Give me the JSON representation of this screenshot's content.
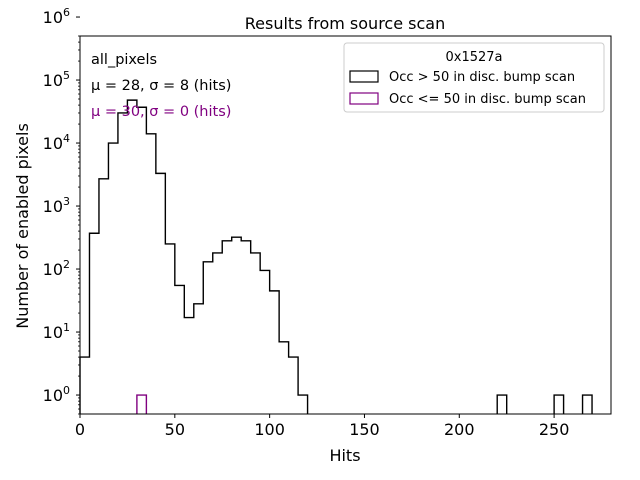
{
  "chart_data": {
    "type": "histogram",
    "title": "Results from source scan",
    "xlabel": "Hits",
    "ylabel": "Number of enabled pixels",
    "xlim": [
      0,
      280
    ],
    "ylim": [
      0.5,
      500000
    ],
    "yscale": "log",
    "grid": false,
    "bin_width": 5,
    "x_ticks": [
      0,
      50,
      100,
      150,
      200,
      250
    ],
    "x_tick_labels": [
      "0",
      "50",
      "100",
      "150",
      "200",
      "250"
    ],
    "y_ticks": [
      1,
      10,
      100,
      1000,
      10000,
      100000,
      1000000
    ],
    "y_tick_labels": [
      {
        "base": "10",
        "exp": "0"
      },
      {
        "base": "10",
        "exp": "1"
      },
      {
        "base": "10",
        "exp": "2"
      },
      {
        "base": "10",
        "exp": "3"
      },
      {
        "base": "10",
        "exp": "4"
      },
      {
        "base": "10",
        "exp": "5"
      },
      {
        "base": "10",
        "exp": "6"
      }
    ],
    "annotations": [
      {
        "text": "all_pixels",
        "color": "#000000"
      },
      {
        "text": "μ = 28, σ = 8 (hits)",
        "color": "#000000"
      },
      {
        "text": "μ = 30, σ = 0 (hits)",
        "color": "#800080"
      }
    ],
    "legend": {
      "title": "0x1527a",
      "position": "top-right",
      "entries": [
        {
          "label": "Occ > 50 in disc. bump scan",
          "color": "#000000"
        },
        {
          "label": "Occ <= 50 in disc. bump scan",
          "color": "#800080"
        }
      ]
    },
    "series": [
      {
        "name": "Occ > 50 in disc. bump scan",
        "color": "#000000",
        "bins": [
          {
            "x": 0,
            "y": 4
          },
          {
            "x": 5,
            "y": 370
          },
          {
            "x": 10,
            "y": 2700
          },
          {
            "x": 15,
            "y": 10000
          },
          {
            "x": 20,
            "y": 30000
          },
          {
            "x": 25,
            "y": 48000
          },
          {
            "x": 30,
            "y": 37000
          },
          {
            "x": 35,
            "y": 14000
          },
          {
            "x": 40,
            "y": 3300
          },
          {
            "x": 45,
            "y": 250
          },
          {
            "x": 50,
            "y": 55
          },
          {
            "x": 55,
            "y": 17
          },
          {
            "x": 60,
            "y": 28
          },
          {
            "x": 65,
            "y": 130
          },
          {
            "x": 70,
            "y": 180
          },
          {
            "x": 75,
            "y": 280
          },
          {
            "x": 80,
            "y": 320
          },
          {
            "x": 85,
            "y": 280
          },
          {
            "x": 90,
            "y": 180
          },
          {
            "x": 95,
            "y": 95
          },
          {
            "x": 100,
            "y": 45
          },
          {
            "x": 105,
            "y": 7
          },
          {
            "x": 110,
            "y": 4
          },
          {
            "x": 115,
            "y": 1
          },
          {
            "x": 220,
            "y": 1
          },
          {
            "x": 250,
            "y": 1
          },
          {
            "x": 265,
            "y": 1
          }
        ]
      },
      {
        "name": "Occ <= 50 in disc. bump scan",
        "color": "#800080",
        "bins": [
          {
            "x": 30,
            "y": 1
          }
        ]
      }
    ]
  }
}
